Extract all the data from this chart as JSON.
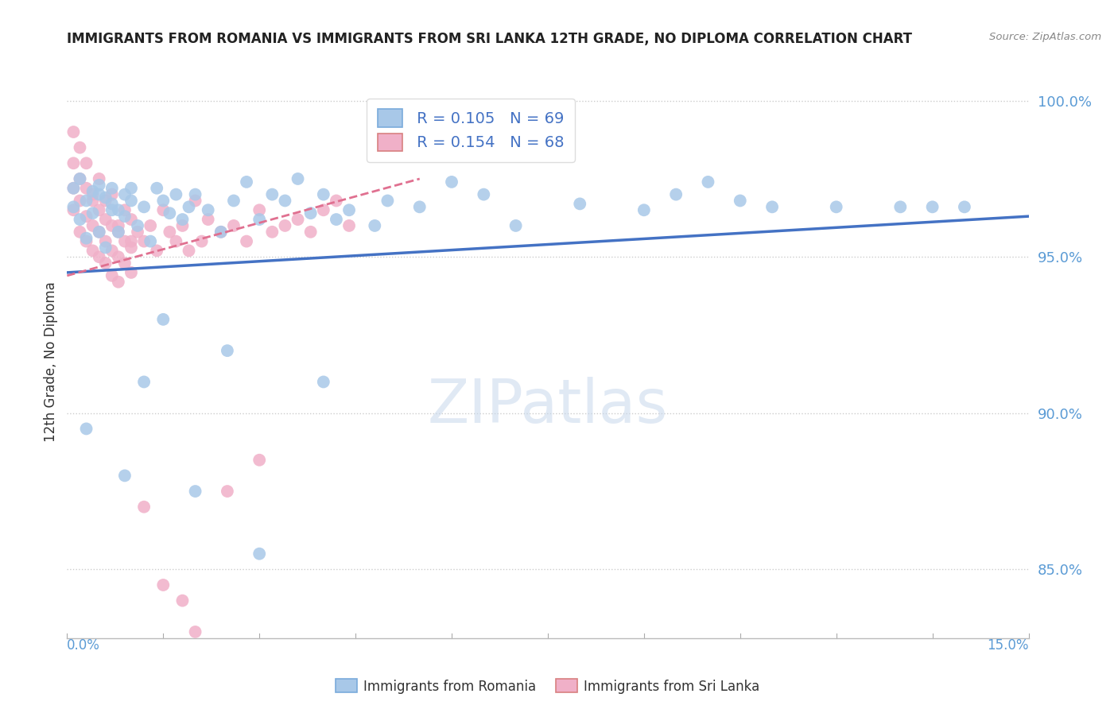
{
  "title": "IMMIGRANTS FROM ROMANIA VS IMMIGRANTS FROM SRI LANKA 12TH GRADE, NO DIPLOMA CORRELATION CHART",
  "source": "Source: ZipAtlas.com",
  "ylabel": "12th Grade, No Diploma",
  "xmin": 0.0,
  "xmax": 0.15,
  "ymin": 0.828,
  "ymax": 1.005,
  "yticks": [
    0.85,
    0.9,
    0.95,
    1.0
  ],
  "ytick_labels": [
    "85.0%",
    "90.0%",
    "95.0%",
    "100.0%"
  ],
  "romania_color": "#a8c8e8",
  "srilanka_color": "#f0b0c8",
  "romania_line_color": "#4472c4",
  "srilanka_line_color": "#e07090",
  "legend_R_romania": "R = 0.105",
  "legend_N_romania": "N = 69",
  "legend_R_srilanka": "R = 0.154",
  "legend_N_srilanka": "N = 68",
  "watermark": "ZIPatlas",
  "romania_trend_x0": 0.0,
  "romania_trend_x1": 0.15,
  "romania_trend_y0": 0.945,
  "romania_trend_y1": 0.963,
  "srilanka_trend_x0": 0.0,
  "srilanka_trend_x1": 0.055,
  "srilanka_trend_y0": 0.944,
  "srilanka_trend_y1": 0.975,
  "romania_pts_x": [
    0.001,
    0.001,
    0.002,
    0.002,
    0.003,
    0.003,
    0.004,
    0.004,
    0.005,
    0.005,
    0.006,
    0.006,
    0.007,
    0.007,
    0.008,
    0.008,
    0.009,
    0.009,
    0.01,
    0.01,
    0.011,
    0.012,
    0.013,
    0.014,
    0.015,
    0.016,
    0.017,
    0.018,
    0.019,
    0.02,
    0.022,
    0.024,
    0.026,
    0.028,
    0.03,
    0.032,
    0.034,
    0.036,
    0.038,
    0.04,
    0.042,
    0.044,
    0.048,
    0.05,
    0.055,
    0.06,
    0.065,
    0.07,
    0.08,
    0.09,
    0.095,
    0.1,
    0.105,
    0.11,
    0.12,
    0.13,
    0.135,
    0.14,
    0.003,
    0.005,
    0.007,
    0.009,
    0.012,
    0.015,
    0.02,
    0.025,
    0.03,
    0.04
  ],
  "romania_pts_y": [
    0.972,
    0.966,
    0.975,
    0.962,
    0.968,
    0.956,
    0.971,
    0.964,
    0.973,
    0.958,
    0.969,
    0.953,
    0.967,
    0.972,
    0.965,
    0.958,
    0.97,
    0.963,
    0.968,
    0.972,
    0.96,
    0.966,
    0.955,
    0.972,
    0.968,
    0.964,
    0.97,
    0.962,
    0.966,
    0.97,
    0.965,
    0.958,
    0.968,
    0.974,
    0.962,
    0.97,
    0.968,
    0.975,
    0.964,
    0.97,
    0.962,
    0.965,
    0.96,
    0.968,
    0.966,
    0.974,
    0.97,
    0.96,
    0.967,
    0.965,
    0.97,
    0.974,
    0.968,
    0.966,
    0.966,
    0.966,
    0.966,
    0.966,
    0.895,
    0.97,
    0.965,
    0.88,
    0.91,
    0.93,
    0.875,
    0.92,
    0.855,
    0.91
  ],
  "srilanka_pts_x": [
    0.001,
    0.001,
    0.001,
    0.002,
    0.002,
    0.002,
    0.003,
    0.003,
    0.003,
    0.004,
    0.004,
    0.004,
    0.005,
    0.005,
    0.005,
    0.006,
    0.006,
    0.006,
    0.007,
    0.007,
    0.007,
    0.008,
    0.008,
    0.008,
    0.009,
    0.009,
    0.01,
    0.01,
    0.01,
    0.011,
    0.012,
    0.013,
    0.014,
    0.015,
    0.016,
    0.017,
    0.018,
    0.019,
    0.02,
    0.021,
    0.022,
    0.024,
    0.026,
    0.028,
    0.03,
    0.032,
    0.034,
    0.036,
    0.038,
    0.04,
    0.042,
    0.044,
    0.001,
    0.002,
    0.003,
    0.004,
    0.005,
    0.006,
    0.007,
    0.008,
    0.009,
    0.01,
    0.012,
    0.015,
    0.018,
    0.02,
    0.025,
    0.03
  ],
  "srilanka_pts_y": [
    0.98,
    0.972,
    0.965,
    0.975,
    0.968,
    0.958,
    0.972,
    0.963,
    0.955,
    0.968,
    0.96,
    0.952,
    0.965,
    0.958,
    0.95,
    0.962,
    0.955,
    0.948,
    0.96,
    0.952,
    0.944,
    0.958,
    0.95,
    0.942,
    0.955,
    0.948,
    0.962,
    0.953,
    0.945,
    0.958,
    0.955,
    0.96,
    0.952,
    0.965,
    0.958,
    0.955,
    0.96,
    0.952,
    0.968,
    0.955,
    0.962,
    0.958,
    0.96,
    0.955,
    0.965,
    0.958,
    0.96,
    0.962,
    0.958,
    0.965,
    0.968,
    0.96,
    0.99,
    0.985,
    0.98,
    0.97,
    0.975,
    0.968,
    0.97,
    0.96,
    0.965,
    0.955,
    0.87,
    0.845,
    0.84,
    0.83,
    0.875,
    0.885
  ]
}
